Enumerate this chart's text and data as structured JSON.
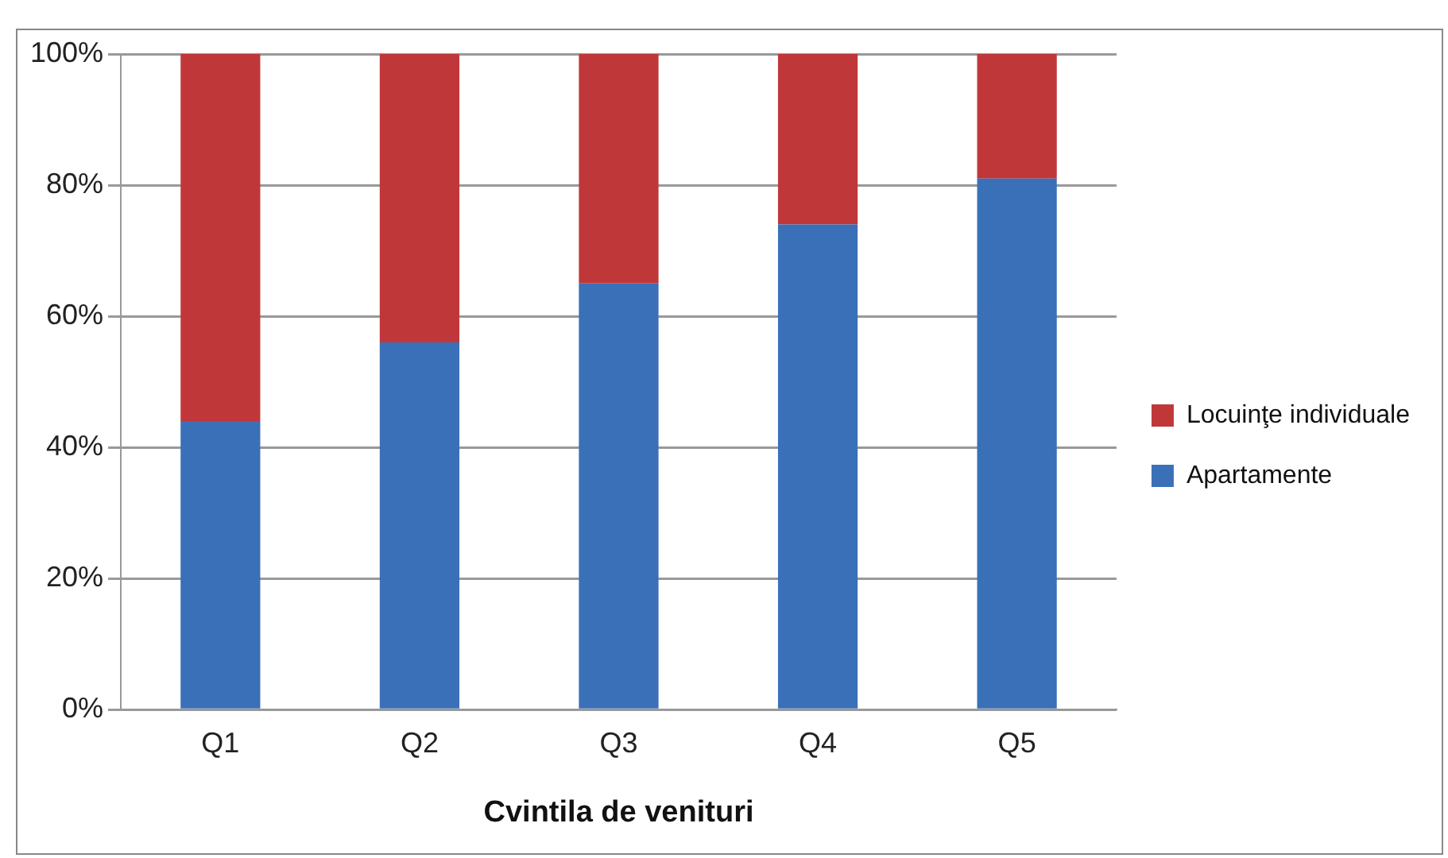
{
  "chart_data": {
    "type": "bar",
    "stacked": true,
    "xlabel": "Cvintila de venituri",
    "categories": [
      "Q1",
      "Q2",
      "Q3",
      "Q4",
      "Q5"
    ],
    "series": [
      {
        "name": "Apartamente",
        "color": "#3a70b8",
        "values": [
          44,
          56,
          65,
          74,
          81
        ]
      },
      {
        "name": "Locuinţe individuale",
        "color": "#c0373a",
        "values": [
          56,
          44,
          35,
          26,
          19
        ]
      }
    ],
    "ylim": [
      0,
      100
    ],
    "yticks": [
      {
        "value": 0,
        "label": "0%"
      },
      {
        "value": 20,
        "label": "20%"
      },
      {
        "value": 40,
        "label": "40%"
      },
      {
        "value": 60,
        "label": "60%"
      },
      {
        "value": 80,
        "label": "80%"
      },
      {
        "value": 100,
        "label": "100%"
      }
    ],
    "grid": "y",
    "legend": "right"
  }
}
